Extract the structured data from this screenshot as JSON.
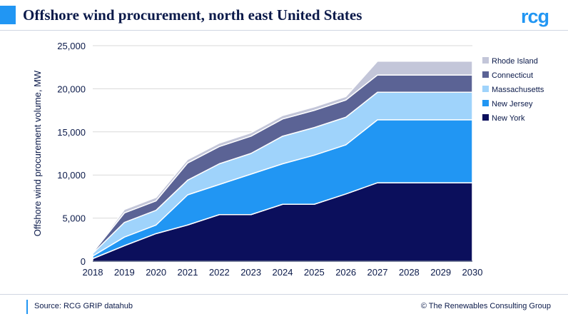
{
  "header": {
    "title": "Offshore wind procurement, north east United States",
    "logo_text": "rcg"
  },
  "footer": {
    "source": "Source: RCG GRIP datahub",
    "copyright": "© The Renewables Consulting Group"
  },
  "colors": {
    "accent": "#2196F3",
    "text": "#0b1a4a"
  },
  "chart_data": {
    "type": "area",
    "stacked": true,
    "title": "",
    "xlabel": "",
    "ylabel": "Offshore wind procurement volume, MW",
    "x": [
      "2018",
      "2019",
      "2020",
      "2021",
      "2022",
      "2023",
      "2024",
      "2025",
      "2026",
      "2027",
      "2028",
      "2029",
      "2030"
    ],
    "ylim": [
      0,
      25000
    ],
    "yticks": [
      0,
      5000,
      10000,
      15000,
      20000,
      25000
    ],
    "ytick_labels": [
      "0",
      "5,000",
      "10,000",
      "15,000",
      "20,000",
      "25,000"
    ],
    "legend_position": "right",
    "series": [
      {
        "name": "New York",
        "color": "#0b0f5c",
        "values": [
          300,
          1800,
          3200,
          4200,
          5400,
          5400,
          6600,
          6600,
          7800,
          9100,
          9100,
          9100,
          9100
        ]
      },
      {
        "name": "New Jersey",
        "color": "#2196F3",
        "values": [
          300,
          1000,
          1000,
          3500,
          3500,
          4700,
          4700,
          5700,
          5700,
          7300,
          7300,
          7300,
          7300
        ]
      },
      {
        "name": "Massachusetts",
        "color": "#9fd3fb",
        "values": [
          300,
          1700,
          1700,
          1700,
          2400,
          2400,
          3200,
          3200,
          3200,
          3200,
          3200,
          3200,
          3200
        ]
      },
      {
        "name": "Connecticut",
        "color": "#5b6395",
        "values": [
          100,
          1100,
          1100,
          2000,
          2000,
          2000,
          2000,
          2000,
          2000,
          2000,
          2000,
          2000,
          2000
        ]
      },
      {
        "name": "Rhode Island",
        "color": "#c3c6d9",
        "values": [
          0,
          400,
          400,
          400,
          400,
          400,
          400,
          400,
          400,
          1600,
          1600,
          1600,
          1600
        ]
      }
    ]
  }
}
